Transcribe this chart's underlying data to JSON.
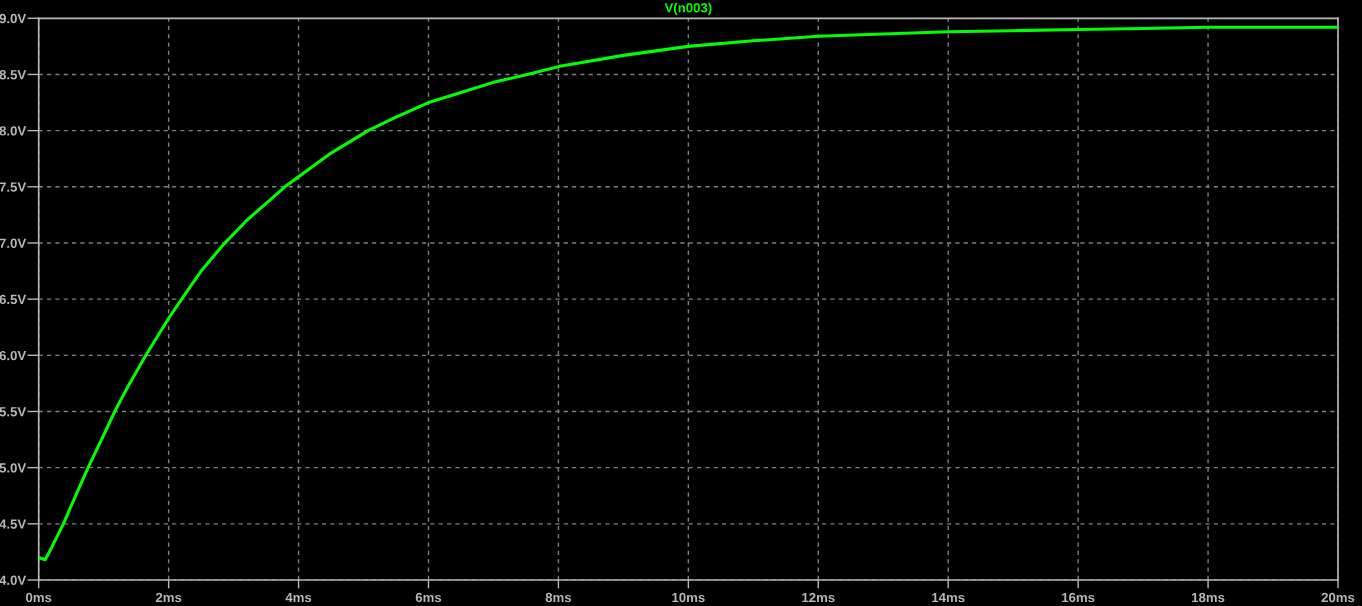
{
  "chart_data": {
    "type": "line",
    "x": [
      0,
      0.1,
      0.2,
      0.38,
      0.5,
      0.76,
      1.0,
      1.17,
      1.4,
      1.65,
      2.0,
      2.2,
      2.5,
      2.85,
      3.2,
      3.79,
      4.0,
      4.5,
      5.07,
      5.5,
      6.0,
      6.5,
      7.0,
      7.6,
      8.0,
      9.0,
      10.0,
      11.0,
      12.0,
      13.0,
      14.0,
      15.0,
      16.0,
      17.0,
      18.0,
      19.0,
      20.0
    ],
    "series": [
      {
        "name": "V(n003)",
        "color": "#00ff00",
        "values": [
          4.2,
          4.18,
          4.29,
          4.5,
          4.66,
          5.0,
          5.29,
          5.5,
          5.75,
          6.0,
          6.33,
          6.5,
          6.75,
          6.99,
          7.2,
          7.5,
          7.59,
          7.8,
          8.0,
          8.12,
          8.25,
          8.34,
          8.43,
          8.51,
          8.57,
          8.67,
          8.75,
          8.8,
          8.84,
          8.86,
          8.88,
          8.89,
          8.9,
          8.91,
          8.92,
          8.92,
          8.92
        ]
      }
    ],
    "xlim": [
      0,
      20
    ],
    "xticks": [
      {
        "value": 0,
        "label": "0ms"
      },
      {
        "value": 2,
        "label": "2ms"
      },
      {
        "value": 4,
        "label": "4ms"
      },
      {
        "value": 6,
        "label": "6ms"
      },
      {
        "value": 8,
        "label": "8ms"
      },
      {
        "value": 10,
        "label": "10ms"
      },
      {
        "value": 12,
        "label": "12ms"
      },
      {
        "value": 14,
        "label": "14ms"
      },
      {
        "value": 16,
        "label": "16ms"
      },
      {
        "value": 18,
        "label": "18ms"
      },
      {
        "value": 20,
        "label": "20ms"
      }
    ],
    "ylim": [
      4.0,
      9.0
    ],
    "yticks": [
      {
        "value": 4.0,
        "label": "4.0V"
      },
      {
        "value": 4.5,
        "label": "4.5V"
      },
      {
        "value": 5.0,
        "label": "5.0V"
      },
      {
        "value": 5.5,
        "label": "5.5V"
      },
      {
        "value": 6.0,
        "label": "6.0V"
      },
      {
        "value": 6.5,
        "label": "6.5V"
      },
      {
        "value": 7.0,
        "label": "7.0V"
      },
      {
        "value": 7.5,
        "label": "7.5V"
      },
      {
        "value": 8.0,
        "label": "8.0V"
      },
      {
        "value": 8.5,
        "label": "8.5V"
      },
      {
        "value": 9.0,
        "label": "9.0V"
      }
    ],
    "grid": true,
    "legend": "top",
    "line_style": "solid"
  }
}
